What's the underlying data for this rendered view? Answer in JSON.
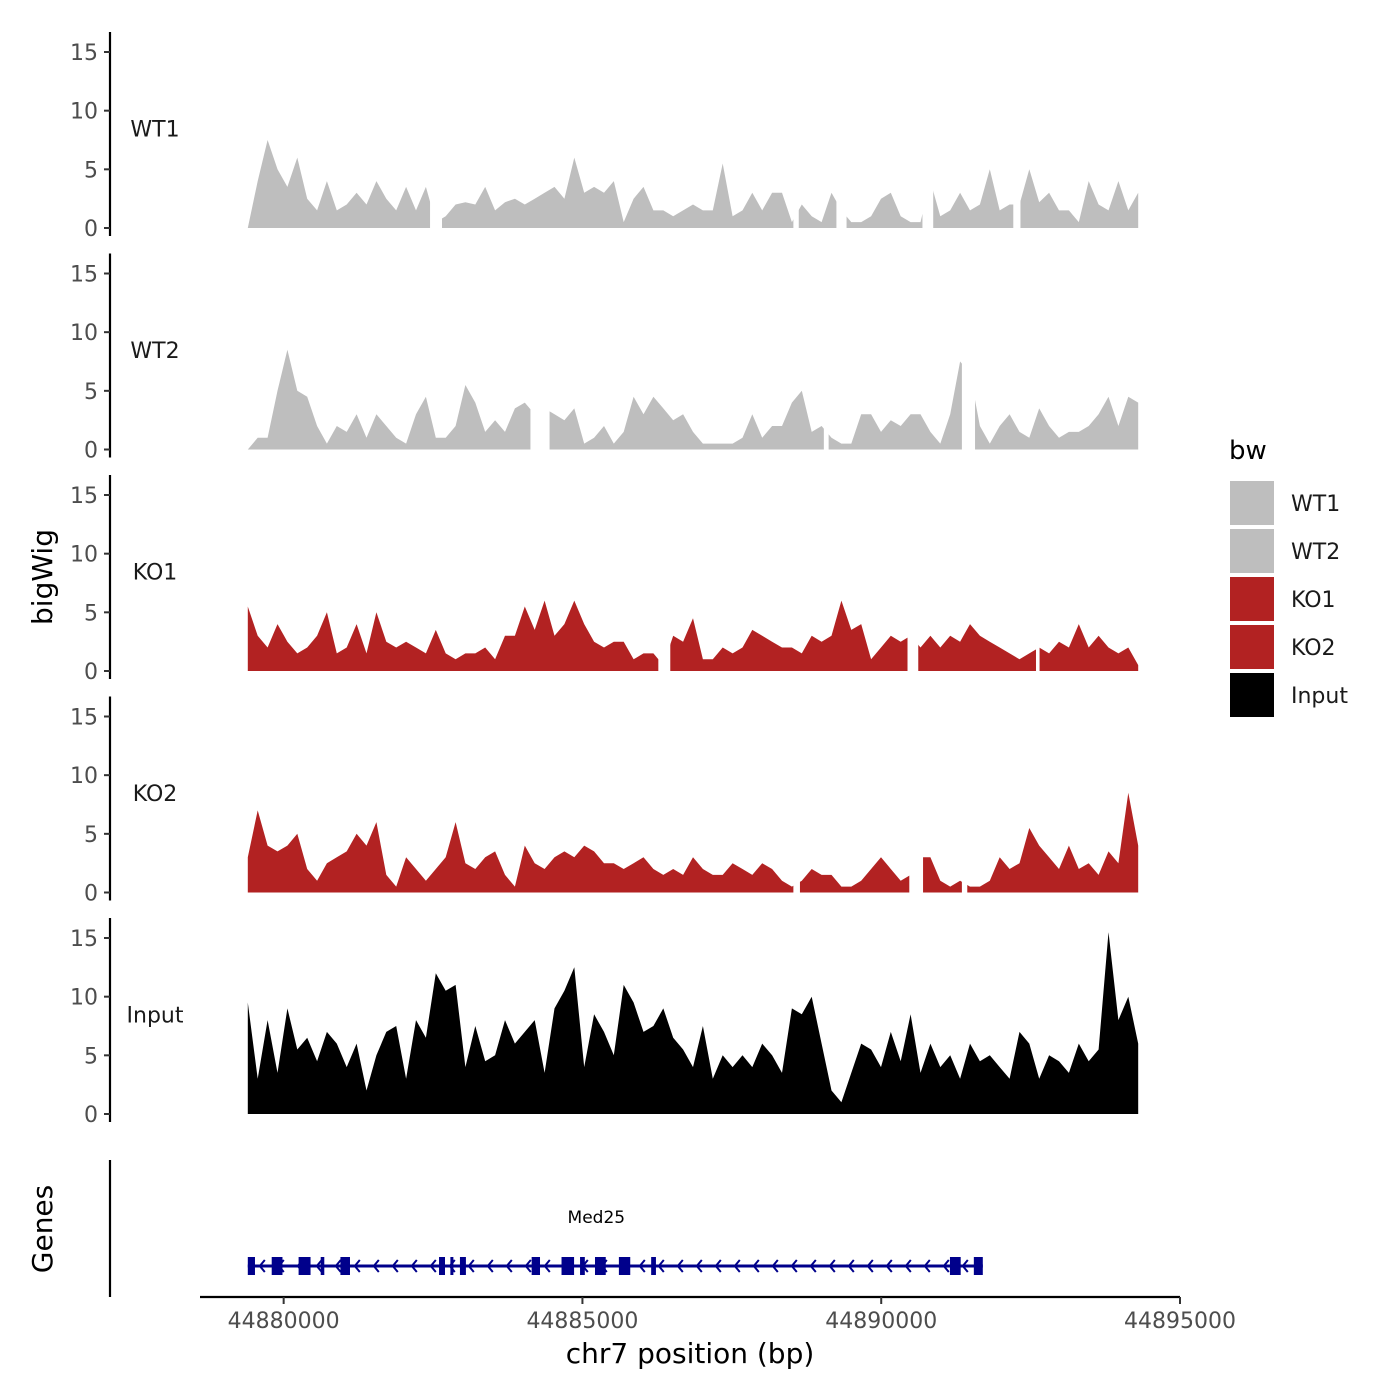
{
  "chart_data": {
    "type": "area",
    "ylabel": "bigWig",
    "genes_label": "Genes",
    "xlabel": "chr7 position (bp)",
    "xlim": [
      44878600,
      44895000
    ],
    "x_ticks": [
      44880000,
      44885000,
      44890000,
      44895000
    ],
    "x_tick_labels": [
      "44880000",
      "44885000",
      "44890000",
      "44895000"
    ],
    "ylim": [
      0,
      16
    ],
    "y_ticks": [
      0,
      5,
      10,
      15
    ],
    "y_tick_labels": [
      "0",
      "5",
      "10",
      "15"
    ],
    "signal_range": [
      44879400,
      44894300
    ],
    "legend": {
      "title": "bw",
      "position": "right",
      "entries": [
        {
          "label": "WT1",
          "color": "#bebebe"
        },
        {
          "label": "WT2",
          "color": "#bebebe"
        },
        {
          "label": "KO1",
          "color": "#b22222"
        },
        {
          "label": "KO2",
          "color": "#b22222"
        },
        {
          "label": "Input",
          "color": "#000000"
        }
      ]
    },
    "tracks": [
      {
        "name": "WT1",
        "color": "#bebebe",
        "values": [
          0,
          4,
          7.5,
          5,
          3.5,
          6,
          2.5,
          1.5,
          4,
          1.5,
          2,
          3,
          2,
          4,
          2.5,
          1.5,
          3.5,
          1.5,
          3.5,
          0.5,
          1,
          2,
          2.2,
          2,
          3.5,
          1.5,
          2.2,
          2.5,
          2,
          2.5,
          3,
          3.5,
          2.5,
          6,
          3,
          3.5,
          3,
          4,
          0.5,
          2.5,
          3.5,
          1.5,
          1.5,
          1,
          1.5,
          2,
          1.5,
          1.5,
          5.5,
          1,
          1.5,
          3,
          1.5,
          3,
          3,
          0.5,
          2,
          1,
          0.5,
          3,
          1.5,
          0.5,
          0.5,
          1,
          2.5,
          3,
          1,
          0.5,
          0.5,
          4,
          1,
          1.5,
          3,
          1.5,
          2,
          5,
          1.5,
          2,
          2,
          5,
          2.2,
          3,
          1.5,
          1.5,
          0.5,
          4,
          2,
          1.5,
          4,
          1.5,
          3
        ],
        "gaps": [
          [
            44882450,
            44882650
          ],
          [
            44888530,
            44888620
          ],
          [
            44889250,
            44889420
          ],
          [
            44890690,
            44890870
          ],
          [
            44892210,
            44892330
          ]
        ]
      },
      {
        "name": "WT2",
        "color": "#bebebe",
        "values": [
          0,
          1,
          1,
          5,
          8.5,
          5,
          4.5,
          2,
          0.5,
          2,
          1.5,
          3,
          1,
          3,
          2,
          1,
          0.5,
          3,
          4.5,
          1,
          1,
          2,
          5.5,
          4,
          1.5,
          2.5,
          1.5,
          3.5,
          4,
          3,
          3.5,
          3,
          2.5,
          3.5,
          0.5,
          1,
          2,
          0.5,
          1.5,
          4.5,
          3,
          4.5,
          3.5,
          2.5,
          3,
          1.5,
          0.5,
          0.5,
          0.5,
          0.5,
          1,
          3,
          1,
          2,
          2,
          4,
          5,
          1.5,
          2,
          1,
          0.5,
          0.5,
          3,
          3,
          1.5,
          2.5,
          2,
          3,
          3,
          1.5,
          0.5,
          3,
          7.5,
          6.5,
          2,
          0.5,
          2,
          3,
          1.5,
          1,
          3.5,
          2,
          1,
          1.5,
          1.5,
          2,
          3,
          4.5,
          2,
          4.5,
          4
        ],
        "gaps": [
          [
            44884130,
            44884450
          ],
          [
            44889040,
            44889120
          ],
          [
            44891350,
            44891570
          ]
        ]
      },
      {
        "name": "KO1",
        "color": "#b22222",
        "values": [
          5.5,
          3,
          2,
          4,
          2.5,
          1.5,
          2,
          3,
          5,
          1.5,
          2,
          4,
          1.5,
          5,
          2.5,
          2,
          2.5,
          2,
          1.5,
          3.5,
          1.5,
          1,
          1.5,
          1.5,
          2,
          1,
          3,
          3,
          5.5,
          3.5,
          6,
          3,
          4,
          6,
          4,
          2.5,
          2,
          2.5,
          2.5,
          1,
          1.5,
          1.5,
          0.5,
          3,
          2.5,
          4.5,
          1,
          1,
          2,
          1.5,
          2,
          3.5,
          3,
          2.5,
          2,
          2,
          1.5,
          3,
          2.5,
          3,
          6,
          3.5,
          4,
          1,
          2,
          3,
          2.5,
          3,
          2,
          3,
          2,
          3,
          2.5,
          4,
          3,
          2.5,
          2,
          1.5,
          1,
          1.5,
          2,
          1.5,
          2.5,
          2,
          4,
          2,
          3,
          2,
          1.5,
          2,
          0.5
        ],
        "gaps": [
          [
            44886270,
            44886470
          ],
          [
            44890440,
            44890620
          ],
          [
            44892590,
            44892650
          ]
        ]
      },
      {
        "name": "KO2",
        "color": "#b22222",
        "values": [
          3,
          7,
          4,
          3.5,
          4,
          5,
          2,
          1,
          2.5,
          3,
          3.5,
          5,
          4,
          6,
          1.5,
          0.5,
          3,
          2,
          1,
          2,
          3,
          6,
          2.5,
          2,
          3,
          3.5,
          1.5,
          0.5,
          4,
          2.5,
          2,
          3,
          3.5,
          3,
          4,
          3.5,
          2.5,
          2.5,
          2,
          2.5,
          3,
          2,
          1.5,
          2,
          1.5,
          3,
          2,
          1.5,
          1.5,
          2.5,
          2,
          1.5,
          2.5,
          2,
          1,
          0.5,
          1,
          2,
          1.5,
          1.5,
          0.5,
          0.5,
          1,
          2,
          3,
          2,
          1,
          1.5,
          3,
          3,
          1,
          0.5,
          1,
          0.5,
          0.5,
          1,
          3,
          2,
          2.5,
          5.5,
          4,
          3,
          2,
          4,
          2,
          2.5,
          1.5,
          3.5,
          2.5,
          8.5,
          4
        ],
        "gaps": [
          [
            44888530,
            44888640
          ],
          [
            44890470,
            44890700
          ],
          [
            44891350,
            44891440
          ]
        ]
      },
      {
        "name": "Input",
        "color": "#000000",
        "values": [
          9.5,
          3,
          8,
          3.5,
          9,
          5.5,
          6.5,
          4.5,
          7,
          6,
          4,
          6,
          2,
          5,
          7,
          7.5,
          3,
          8,
          6.5,
          12,
          10.5,
          11,
          4,
          7.5,
          4.5,
          5,
          8,
          6,
          7,
          8,
          3.5,
          9,
          10.5,
          12.5,
          4,
          8.5,
          7,
          5,
          11,
          9.5,
          7,
          7.5,
          9,
          6.5,
          5.5,
          4,
          7.5,
          3,
          5,
          4,
          5,
          4,
          6,
          5,
          3.5,
          9,
          8.5,
          10,
          6,
          2,
          1,
          3.5,
          6,
          5.5,
          4,
          7,
          4.5,
          8.5,
          3.5,
          6,
          4,
          5,
          3,
          6,
          4.5,
          5,
          4,
          3,
          7,
          6,
          3,
          5,
          4.5,
          3.5,
          6,
          4.5,
          5.5,
          15.5,
          8,
          10,
          6
        ],
        "gaps": []
      }
    ],
    "genes": [
      {
        "name": "Med25",
        "start": 44879400,
        "end": 44891700,
        "strand": "-",
        "color": "#00008b",
        "exons": [
          [
            44879400,
            44879520
          ],
          [
            44879800,
            44879980
          ],
          [
            44880250,
            44880450
          ],
          [
            44880620,
            44880680
          ],
          [
            44880950,
            44881110
          ],
          [
            44882600,
            44882700
          ],
          [
            44882790,
            44882820
          ],
          [
            44882950,
            44883050
          ],
          [
            44884150,
            44884290
          ],
          [
            44884650,
            44884860
          ],
          [
            44884960,
            44885040
          ],
          [
            44885210,
            44885390
          ],
          [
            44885610,
            44885800
          ],
          [
            44886150,
            44886230
          ],
          [
            44891150,
            44891330
          ],
          [
            44891550,
            44891700
          ]
        ]
      }
    ]
  }
}
